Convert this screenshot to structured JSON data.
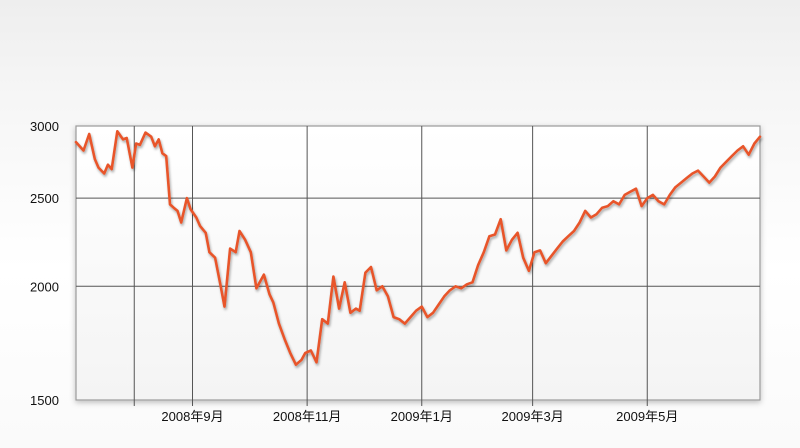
{
  "chart_data": {
    "type": "line",
    "title": "",
    "xlabel": "",
    "ylabel": "",
    "y_scale": "log",
    "ylim": [
      1500,
      3000
    ],
    "yticks": [
      3000,
      2500,
      2000,
      1500
    ],
    "xlim": [
      "2008-07-01",
      "2009-06-30"
    ],
    "xticks": [
      {
        "date": "2008-09-01",
        "label": "2008年9月"
      },
      {
        "date": "2008-11-01",
        "label": "2008年11月"
      },
      {
        "date": "2009-01-01",
        "label": "2009年1月"
      },
      {
        "date": "2009-03-01",
        "label": "2009年3月"
      },
      {
        "date": "2009-05-01",
        "label": "2009年5月"
      }
    ],
    "grid": true,
    "line_color": "#e8552a",
    "series": [
      {
        "x": [
          "2008-07-01",
          "2008-07-05",
          "2008-07-08",
          "2008-07-11",
          "2008-07-13",
          "2008-07-16",
          "2008-07-18",
          "2008-07-20",
          "2008-07-23",
          "2008-07-26",
          "2008-07-28",
          "2008-07-31",
          "2008-08-02",
          "2008-08-04",
          "2008-08-07",
          "2008-08-10",
          "2008-08-12",
          "2008-08-14",
          "2008-08-16",
          "2008-08-18",
          "2008-08-20",
          "2008-08-22",
          "2008-08-24",
          "2008-08-26",
          "2008-08-29",
          "2008-08-31",
          "2008-09-03",
          "2008-09-05",
          "2008-09-08",
          "2008-09-10",
          "2008-09-13",
          "2008-09-16",
          "2008-09-18",
          "2008-09-21",
          "2008-09-24",
          "2008-09-26",
          "2008-09-29",
          "2008-10-02",
          "2008-10-05",
          "2008-10-09",
          "2008-10-12",
          "2008-10-14",
          "2008-10-17",
          "2008-10-20",
          "2008-10-23",
          "2008-10-26",
          "2008-10-29",
          "2008-10-31",
          "2008-11-03",
          "2008-11-06",
          "2008-11-09",
          "2008-11-12",
          "2008-11-15",
          "2008-11-18",
          "2008-11-21",
          "2008-11-24",
          "2008-11-27",
          "2008-11-29",
          "2008-12-02",
          "2008-12-05",
          "2008-12-08",
          "2008-12-11",
          "2008-12-14",
          "2008-12-17",
          "2008-12-20",
          "2008-12-23",
          "2008-12-26",
          "2008-12-29",
          "2009-01-01",
          "2009-01-04",
          "2009-01-07",
          "2009-01-10",
          "2009-01-13",
          "2009-01-16",
          "2009-01-19",
          "2009-01-22",
          "2009-01-25",
          "2009-01-28",
          "2009-01-31",
          "2009-02-03",
          "2009-02-06",
          "2009-02-09",
          "2009-02-12",
          "2009-02-15",
          "2009-02-18",
          "2009-02-21",
          "2009-02-24",
          "2009-02-27",
          "2009-03-02",
          "2009-03-05",
          "2009-03-08",
          "2009-03-11",
          "2009-03-14",
          "2009-03-17",
          "2009-03-20",
          "2009-03-23",
          "2009-03-26",
          "2009-03-29",
          "2009-04-01",
          "2009-04-04",
          "2009-04-07",
          "2009-04-10",
          "2009-04-13",
          "2009-04-16",
          "2009-04-19",
          "2009-04-22",
          "2009-04-25",
          "2009-04-28",
          "2009-05-01",
          "2009-05-04",
          "2009-05-07",
          "2009-05-10",
          "2009-05-13",
          "2009-05-16",
          "2009-05-19",
          "2009-05-22",
          "2009-05-25",
          "2009-05-28",
          "2009-05-31",
          "2009-06-03",
          "2009-06-06",
          "2009-06-09",
          "2009-06-12",
          "2009-06-15",
          "2009-06-18",
          "2009-06-21",
          "2009-06-24",
          "2009-06-27",
          "2009-06-30"
        ],
        "values": [
          2880,
          2820,
          2940,
          2760,
          2700,
          2660,
          2720,
          2690,
          2960,
          2900,
          2910,
          2700,
          2870,
          2860,
          2950,
          2920,
          2850,
          2900,
          2800,
          2780,
          2460,
          2440,
          2420,
          2350,
          2500,
          2430,
          2380,
          2330,
          2290,
          2180,
          2150,
          2000,
          1900,
          2200,
          2180,
          2300,
          2250,
          2180,
          1990,
          2060,
          1960,
          1920,
          1820,
          1750,
          1690,
          1640,
          1660,
          1690,
          1700,
          1650,
          1840,
          1820,
          2050,
          1890,
          2020,
          1870,
          1890,
          1880,
          2070,
          2100,
          1980,
          2000,
          1950,
          1850,
          1840,
          1820,
          1850,
          1880,
          1900,
          1850,
          1870,
          1910,
          1950,
          1980,
          2000,
          1990,
          2010,
          2020,
          2110,
          2180,
          2270,
          2280,
          2370,
          2190,
          2250,
          2290,
          2150,
          2080,
          2180,
          2190,
          2120,
          2160,
          2200,
          2240,
          2270,
          2300,
          2350,
          2420,
          2380,
          2400,
          2440,
          2450,
          2480,
          2460,
          2520,
          2540,
          2560,
          2450,
          2500,
          2520,
          2480,
          2460,
          2520,
          2570,
          2600,
          2630,
          2660,
          2680,
          2640,
          2600,
          2640,
          2700,
          2740,
          2780,
          2820,
          2850,
          2790,
          2870,
          2920
        ]
      }
    ]
  }
}
